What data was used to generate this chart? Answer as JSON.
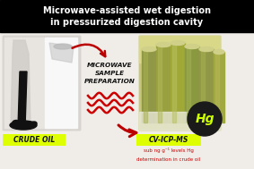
{
  "title_line1": "Microwave-assisted wet digestion",
  "title_line2": "in pressurized digestion cavity",
  "title_bg": "#000000",
  "title_color": "#ffffff",
  "bg_color": "#f5f5f0",
  "label_crude_oil": "CRUDE OIL",
  "label_cv_icp_ms": "CV-ICP-MS",
  "label_yellow_bg": "#ddff00",
  "label_text_color": "#111111",
  "label_hg": "Hg",
  "hg_bg": "#1a1a1a",
  "hg_color": "#ccff00",
  "microwave_text_line1": "MICROWAVE",
  "microwave_text_line2": "SAMPLE",
  "microwave_text_line3": "PREPARATION",
  "arrow_color": "#bb0000",
  "wave_color": "#cc0000",
  "sub_text_color": "#cc0000",
  "title_fontsize": 7.0,
  "body_bg": "#e8e8e0"
}
